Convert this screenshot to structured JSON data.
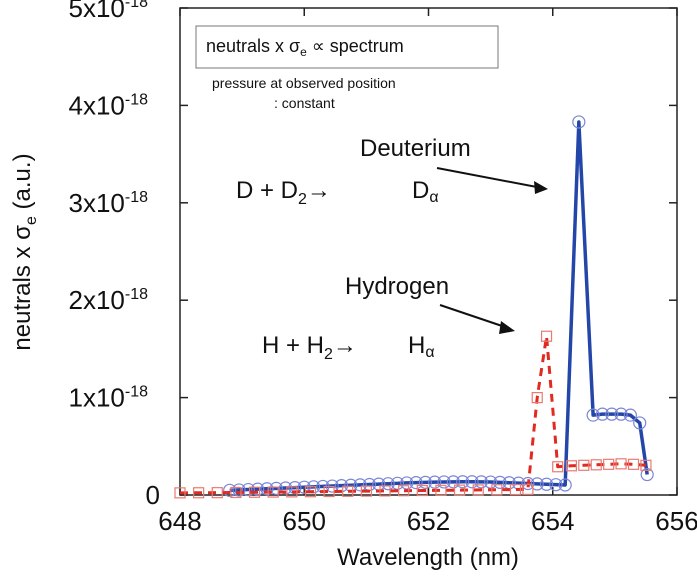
{
  "chart_data": {
    "type": "line",
    "xlabel": "Wavelength (nm)",
    "ylabel_main": "neutrals x σ",
    "ylabel_sub": "e",
    "ylabel_unit": " (a.u.)",
    "xlim": [
      648,
      656
    ],
    "ylim": [
      0,
      5e-18
    ],
    "grid": false,
    "x_ticks": [
      {
        "value": 648,
        "label": "648"
      },
      {
        "value": 650,
        "label": "650"
      },
      {
        "value": 652,
        "label": "652"
      },
      {
        "value": 654,
        "label": "654"
      },
      {
        "value": 656,
        "label": "656"
      }
    ],
    "y_ticks": [
      {
        "value": 0,
        "label": "0",
        "exp": ""
      },
      {
        "value": 1e-18,
        "label": "1x10",
        "exp": "-18"
      },
      {
        "value": 2e-18,
        "label": "2x10",
        "exp": "-18"
      },
      {
        "value": 3e-18,
        "label": "3x10",
        "exp": "-18"
      },
      {
        "value": 4e-18,
        "label": "4x10",
        "exp": "-18"
      },
      {
        "value": 5e-18,
        "label": "5x10",
        "exp": "-18"
      }
    ],
    "legend": {
      "title_a": "neutrals x σ",
      "title_sub": "e",
      "title_b": " ∝ spectrum",
      "note_line1": "pressure at observed position",
      "note_line2": ": constant",
      "placement": "top-left"
    },
    "annotations": [
      {
        "id": "deuterium",
        "text": "Deuterium"
      },
      {
        "id": "hydrogen",
        "text": "Hydrogen"
      },
      {
        "id": "d-reaction",
        "lhs": "D + D",
        "sub": "2",
        "arrow": "→",
        "rhs": "D",
        "rhs_sub": "α"
      },
      {
        "id": "h-reaction",
        "lhs": "H + H",
        "sub": "2",
        "arrow": "→",
        "rhs": "H",
        "rhs_sub": "α"
      }
    ],
    "series": [
      {
        "id": "deuterium",
        "color": "#2346a8",
        "marker_color": "#7a85d6",
        "line_style": "solid",
        "marker": "circle",
        "x": [
          648.8,
          648.95,
          649.1,
          649.25,
          649.4,
          649.55,
          649.7,
          649.85,
          650.0,
          650.15,
          650.3,
          650.45,
          650.6,
          650.75,
          650.9,
          651.05,
          651.2,
          651.35,
          651.5,
          651.65,
          651.8,
          651.95,
          652.1,
          652.25,
          652.4,
          652.55,
          652.7,
          652.85,
          653.0,
          653.15,
          653.3,
          653.45,
          653.6,
          653.75,
          653.9,
          654.05,
          654.2,
          654.42,
          654.65,
          654.8,
          654.95,
          655.1,
          655.25,
          655.4,
          655.52
        ],
        "y": [
          4.8e-20,
          5.2e-20,
          5.6e-20,
          6e-20,
          6.4e-20,
          6.8e-20,
          7.2e-20,
          7.6e-20,
          8e-20,
          8.4e-20,
          8.8e-20,
          9.2e-20,
          9.6e-20,
          1e-19,
          1.04e-19,
          1.08e-19,
          1.12e-19,
          1.16e-19,
          1.2e-19,
          1.24e-19,
          1.27e-19,
          1.3e-19,
          1.32e-19,
          1.34e-19,
          1.35e-19,
          1.36e-19,
          1.36e-19,
          1.35e-19,
          1.33e-19,
          1.3e-19,
          1.26e-19,
          1.22e-19,
          1.18e-19,
          1.14e-19,
          1.1e-19,
          1.06e-19,
          1.03e-19,
          3.83e-18,
          8.2e-19,
          8.3e-19,
          8.3e-19,
          8.3e-19,
          8.2e-19,
          7.4e-19,
          2.1e-19
        ]
      },
      {
        "id": "hydrogen",
        "color": "#e02a22",
        "marker_color": "#e87a70",
        "line_style": "dashed",
        "marker": "square",
        "x": [
          648.0,
          648.3,
          648.6,
          648.9,
          649.2,
          649.5,
          649.8,
          650.1,
          650.4,
          650.7,
          651.0,
          651.3,
          651.6,
          651.9,
          652.2,
          652.5,
          652.8,
          653.1,
          653.4,
          653.6,
          653.75,
          653.9,
          654.08,
          654.3,
          654.5,
          654.7,
          654.9,
          655.1,
          655.3,
          655.5
        ],
        "y": [
          2.2e-20,
          2.3e-20,
          2.4e-20,
          2.6e-20,
          2.8e-20,
          3e-20,
          3.2e-20,
          3.4e-20,
          3.6e-20,
          3.8e-20,
          4e-20,
          4.2e-20,
          4.4e-20,
          4.6e-20,
          4.8e-20,
          5e-20,
          5.2e-20,
          5.4e-20,
          5.6e-20,
          5.8e-20,
          1e-18,
          1.63e-18,
          2.9e-19,
          3e-19,
          3.05e-19,
          3.1e-19,
          3.15e-19,
          3.2e-19,
          3.15e-19,
          3.05e-19
        ]
      }
    ]
  }
}
